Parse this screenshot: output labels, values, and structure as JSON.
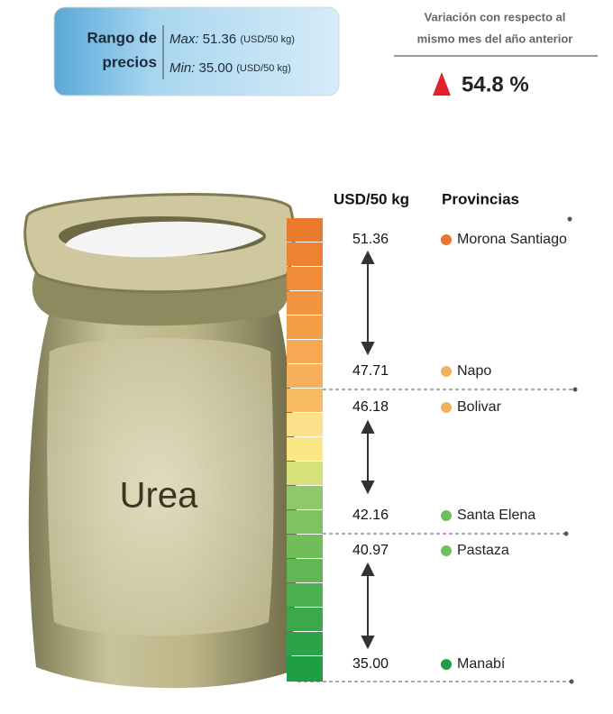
{
  "range_box": {
    "title_line1": "Rango de",
    "title_line2": "precios",
    "max_label": "Max:",
    "max_value": "51.36",
    "max_unit": "(USD/50 kg)",
    "min_label": "Min:",
    "min_value": "35.00",
    "min_unit": "(USD/50 kg)"
  },
  "variation": {
    "line1": "Variación con respecto al",
    "line2": "mismo mes del año anterior",
    "value": "54.8 %"
  },
  "product": "Urea",
  "headers": {
    "price": "USD/50 kg",
    "province": "Provincias"
  },
  "rows": [
    {
      "price": "51.36",
      "province": "Morona Santiago",
      "color": "#e8762d"
    },
    {
      "price": "47.71",
      "province": "Napo",
      "color": "#f4b05f"
    },
    {
      "price": "46.18",
      "province": "Bolivar",
      "color": "#f4b05f"
    },
    {
      "price": "42.16",
      "province": "Santa Elena",
      "color": "#6fbf5d"
    },
    {
      "price": "40.97",
      "province": "Pastaza",
      "color": "#6fbf5d"
    },
    {
      "price": "35.00",
      "province": "Manabí",
      "color": "#1e9e45"
    }
  ]
}
